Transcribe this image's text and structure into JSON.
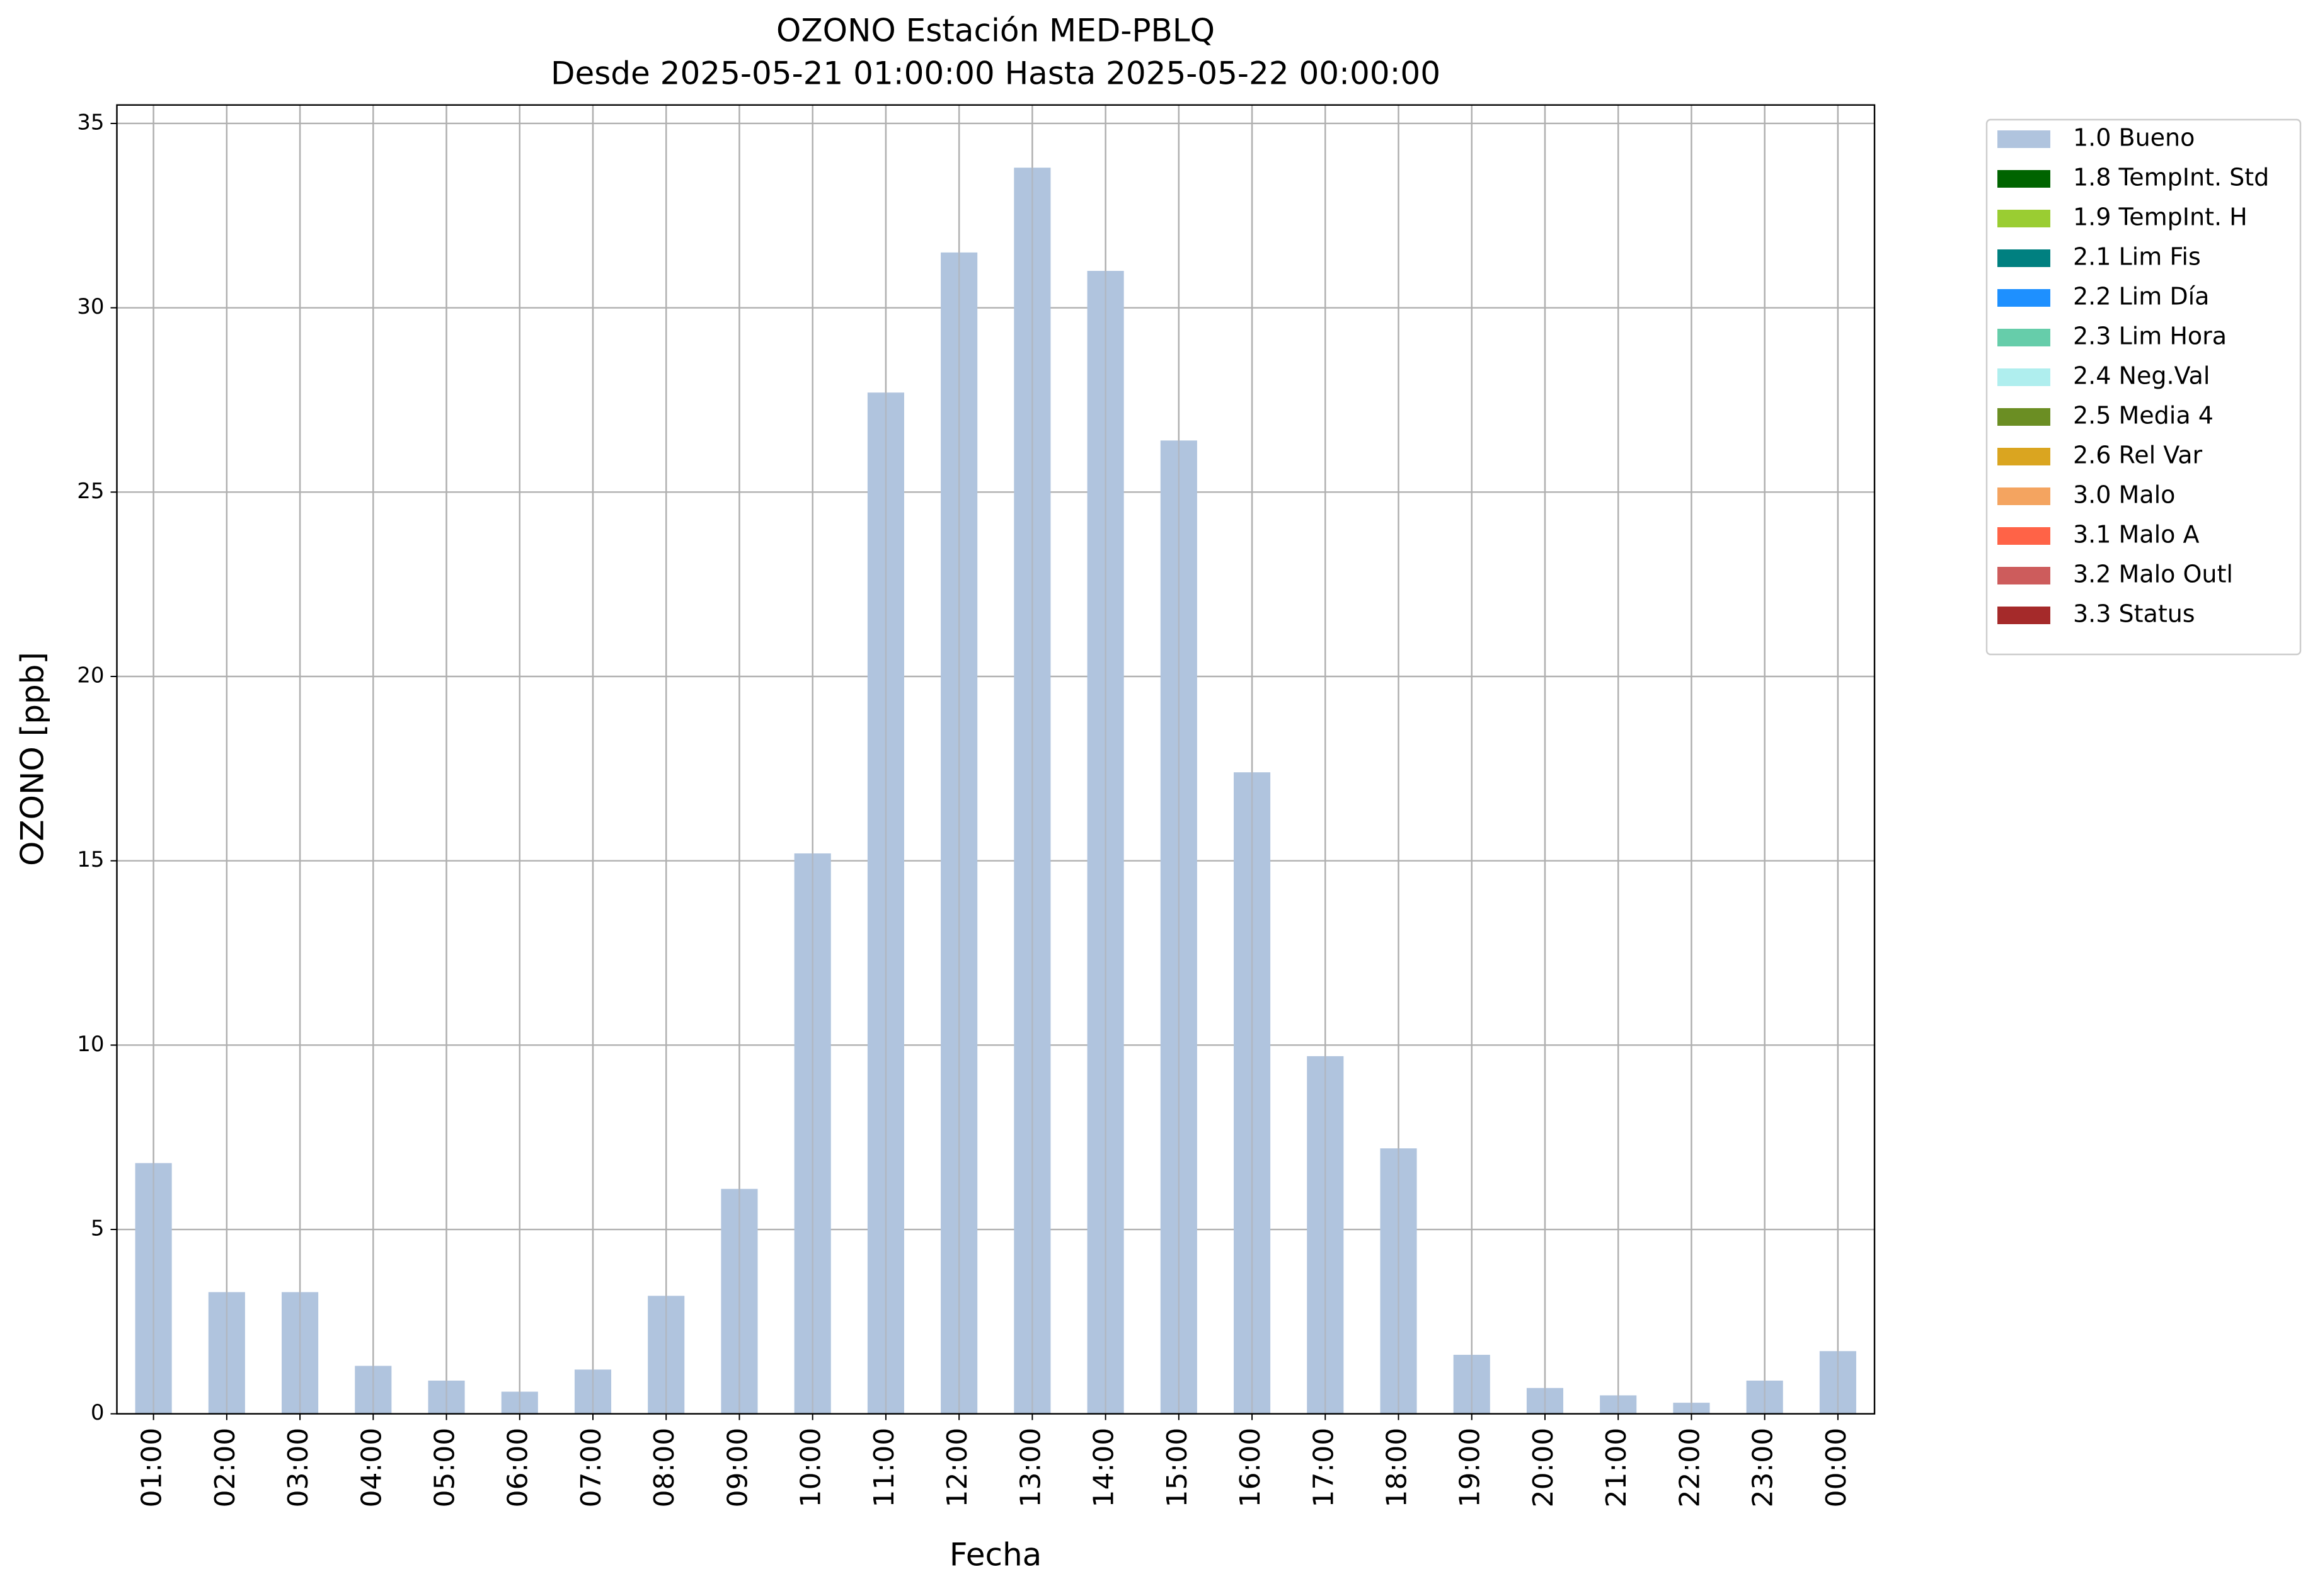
{
  "chart_data": {
    "type": "bar",
    "title": "OZONO Estación MED-PBLQ",
    "subtitle": "Desde 2025-05-21 01:00:00 Hasta 2025-05-22 00:00:00",
    "x_label": "Fecha",
    "y_label": "OZONO [ppb]",
    "categories": [
      "01:00",
      "02:00",
      "03:00",
      "04:00",
      "05:00",
      "06:00",
      "07:00",
      "08:00",
      "09:00",
      "10:00",
      "11:00",
      "12:00",
      "13:00",
      "14:00",
      "15:00",
      "16:00",
      "17:00",
      "18:00",
      "19:00",
      "20:00",
      "21:00",
      "22:00",
      "23:00",
      "00:00"
    ],
    "series": [
      {
        "name": "1.0 Bueno",
        "color": "#b0c4de",
        "values": [
          6.8,
          3.3,
          3.3,
          1.3,
          0.9,
          0.6,
          1.2,
          3.2,
          6.1,
          15.2,
          27.7,
          31.5,
          33.8,
          31.0,
          26.4,
          17.4,
          9.7,
          7.2,
          1.6,
          0.7,
          0.5,
          0.3,
          0.9,
          1.7
        ]
      },
      {
        "name": "1.8 TempInt. Std",
        "color": "#006400"
      },
      {
        "name": "1.9 TempInt. H",
        "color": "#9acd32"
      },
      {
        "name": "2.1 Lim Fis",
        "color": "#008080"
      },
      {
        "name": "2.2 Lim Día",
        "color": "#1e90ff"
      },
      {
        "name": "2.3 Lim Hora",
        "color": "#66cdaa"
      },
      {
        "name": "2.4 Neg.Val",
        "color": "#afeeee"
      },
      {
        "name": "2.5 Media 4",
        "color": "#6b8e23"
      },
      {
        "name": "2.6 Rel Var",
        "color": "#daa520"
      },
      {
        "name": "3.0 Malo",
        "color": "#f4a460"
      },
      {
        "name": "3.1 Malo A",
        "color": "#ff6347"
      },
      {
        "name": "3.2 Malo Outl",
        "color": "#cd5c5c"
      },
      {
        "name": "3.3 Status",
        "color": "#a52a2a"
      }
    ],
    "ylim": [
      0,
      35.5
    ],
    "yticks": [
      0,
      5,
      10,
      15,
      20,
      25,
      30,
      35
    ],
    "grid": true,
    "legend": "outside upper right"
  }
}
